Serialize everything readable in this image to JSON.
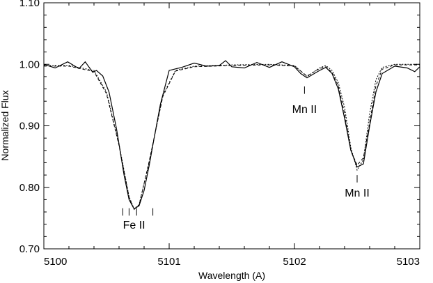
{
  "chart_data": {
    "type": "line",
    "xlabel": "Wavelength (A)",
    "ylabel": "Normalized Flux",
    "xlim": [
      5100,
      5103
    ],
    "ylim": [
      0.7,
      1.1
    ],
    "x_ticks": [
      {
        "value": 5100,
        "label": "5100"
      },
      {
        "value": 5101,
        "label": "5101"
      },
      {
        "value": 5102,
        "label": "5102"
      },
      {
        "value": 5103,
        "label": "5103"
      }
    ],
    "y_ticks": [
      {
        "value": 0.7,
        "label": "0.70"
      },
      {
        "value": 0.8,
        "label": "0.80"
      },
      {
        "value": 0.9,
        "label": "0.90"
      },
      {
        "value": 1.0,
        "label": "1.00"
      },
      {
        "value": 1.1,
        "label": "1.10"
      }
    ],
    "series": [
      {
        "style": "solid",
        "color": "#000000",
        "x": [
          5100.0,
          5100.09,
          5100.19,
          5100.28,
          5100.33,
          5100.39,
          5100.42,
          5100.47,
          5100.52,
          5100.58,
          5100.64,
          5100.68,
          5100.72,
          5100.76,
          5100.8,
          5100.84,
          5100.88,
          5100.93,
          5101.0,
          5101.1,
          5101.2,
          5101.3,
          5101.4,
          5101.45,
          5101.5,
          5101.6,
          5101.7,
          5101.8,
          5101.9,
          5102.0,
          5102.05,
          5102.1,
          5102.15,
          5102.2,
          5102.25,
          5102.3,
          5102.35,
          5102.4,
          5102.45,
          5102.5,
          5102.55,
          5102.6,
          5102.65,
          5102.7,
          5102.8,
          5102.9,
          5102.96,
          5103.0
        ],
        "y": [
          1.0,
          0.994,
          1.004,
          0.993,
          1.004,
          0.987,
          0.99,
          0.981,
          0.955,
          0.895,
          0.82,
          0.78,
          0.765,
          0.77,
          0.795,
          0.835,
          0.88,
          0.935,
          0.99,
          0.995,
          1.002,
          0.997,
          0.998,
          1.006,
          0.996,
          0.994,
          1.003,
          0.995,
          1.004,
          0.996,
          0.985,
          0.978,
          0.984,
          0.99,
          0.995,
          0.985,
          0.96,
          0.912,
          0.86,
          0.833,
          0.838,
          0.9,
          0.955,
          0.985,
          0.997,
          0.994,
          0.988,
          0.996
        ]
      },
      {
        "style": "dotted",
        "color": "#000000",
        "x": [
          5100.0,
          5100.2,
          5100.4,
          5100.5,
          5100.6,
          5100.68,
          5100.72,
          5100.76,
          5100.84,
          5100.95,
          5101.05,
          5101.2,
          5101.5,
          5101.8,
          5102.0,
          5102.1,
          5102.2,
          5102.25,
          5102.3,
          5102.35,
          5102.4,
          5102.45,
          5102.5,
          5102.55,
          5102.6,
          5102.65,
          5102.7,
          5102.8,
          5103.0
        ],
        "y": [
          0.998,
          0.998,
          0.99,
          0.955,
          0.87,
          0.785,
          0.765,
          0.772,
          0.84,
          0.95,
          0.99,
          0.997,
          0.999,
          1.0,
          0.998,
          0.98,
          0.994,
          0.998,
          0.99,
          0.97,
          0.93,
          0.865,
          0.828,
          0.845,
          0.92,
          0.975,
          0.995,
          1.0,
          1.0
        ]
      },
      {
        "style": "dashed",
        "color": "#000000",
        "x": [
          5100.0,
          5100.2,
          5100.4,
          5100.5,
          5100.6,
          5100.68,
          5100.72,
          5100.76,
          5100.84,
          5100.95,
          5101.05,
          5101.2,
          5101.5,
          5101.8,
          5102.0,
          5102.1,
          5102.2,
          5102.25,
          5102.3,
          5102.35,
          5102.4,
          5102.45,
          5102.5,
          5102.55,
          5102.6,
          5102.65,
          5102.7,
          5102.8,
          5103.0
        ],
        "y": [
          0.997,
          0.997,
          0.988,
          0.952,
          0.868,
          0.784,
          0.764,
          0.771,
          0.842,
          0.948,
          0.989,
          0.996,
          0.998,
          0.999,
          0.997,
          0.981,
          0.993,
          0.996,
          0.987,
          0.965,
          0.92,
          0.86,
          0.836,
          0.848,
          0.905,
          0.965,
          0.992,
          0.999,
          0.999
        ]
      }
    ],
    "annotations": [
      {
        "label": "Fe II",
        "label_x": 5100.72,
        "label_y": 0.733,
        "marker_x": [
          5100.63,
          5100.68,
          5100.74,
          5100.87
        ],
        "marker_y": [
          0.754,
          0.766
        ]
      },
      {
        "label": "Mn II",
        "label_x": 5102.08,
        "label_y": 0.921,
        "marker_x": [
          5102.08
        ],
        "marker_y": [
          0.952,
          0.964
        ]
      },
      {
        "label": "Mn II",
        "label_x": 5102.5,
        "label_y": 0.785,
        "marker_x": [
          5102.5
        ],
        "marker_y": [
          0.808,
          0.82
        ]
      }
    ]
  }
}
